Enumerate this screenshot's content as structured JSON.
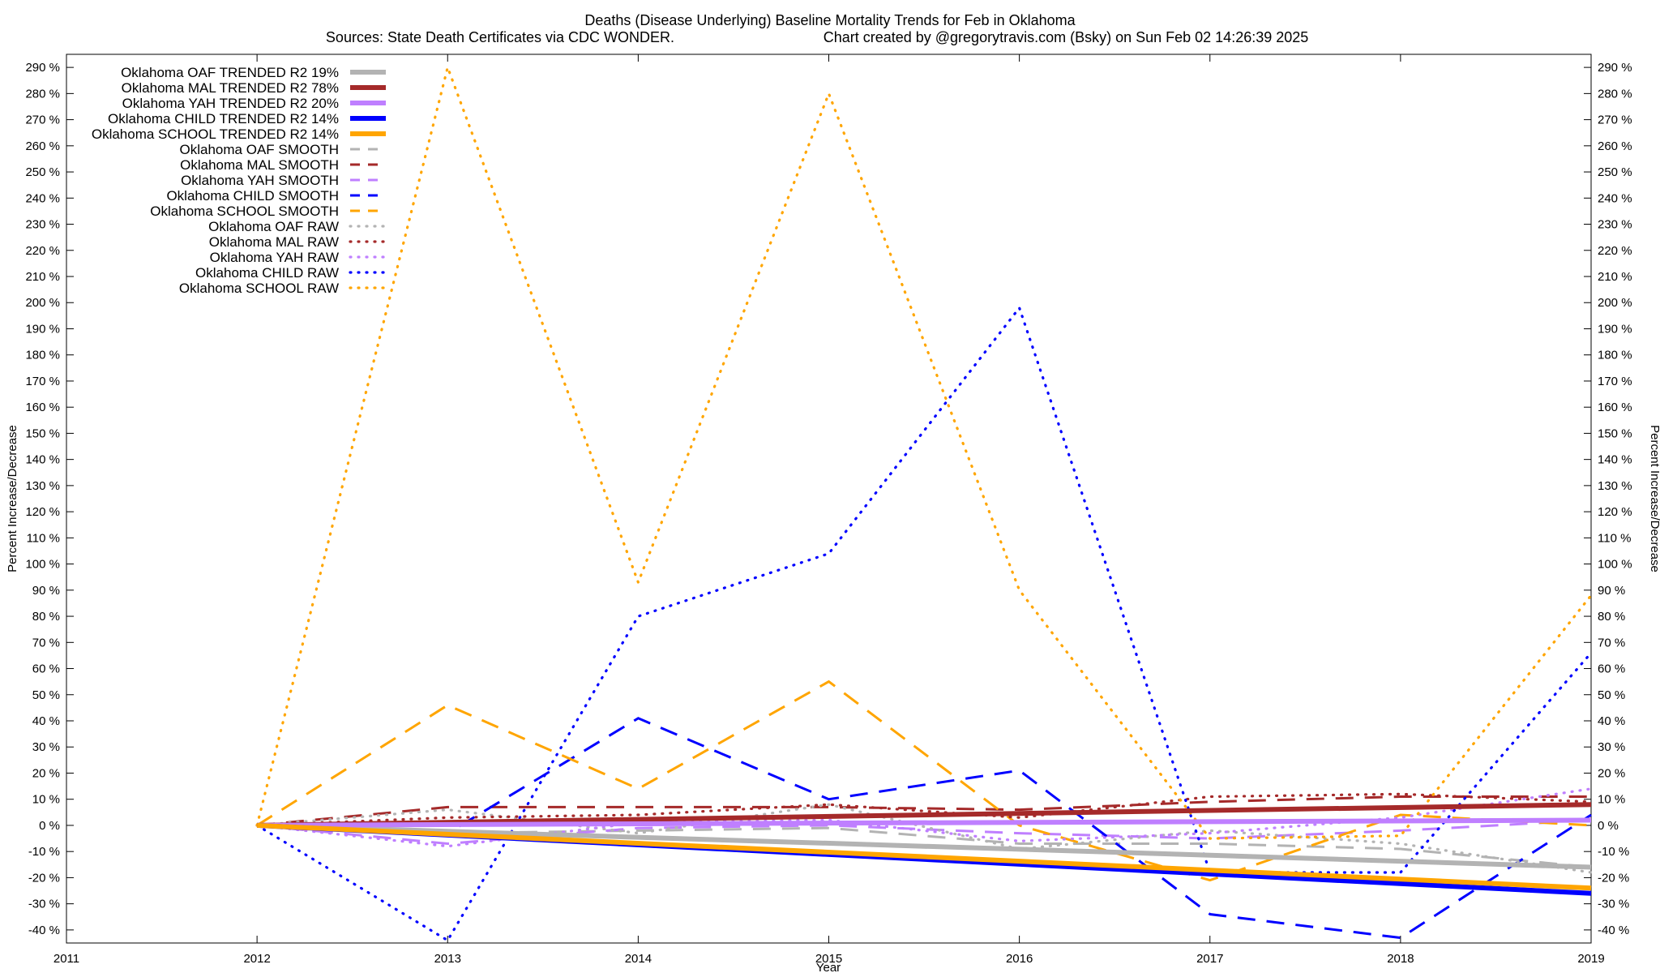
{
  "chart_data": {
    "type": "line",
    "title": "Deaths (Disease Underlying)  Baseline Mortality Trends for Feb in Oklahoma",
    "subtitle_left": "Sources: State Death Certificates via CDC WONDER.",
    "subtitle_right": "Chart created by @gregorytravis.com (Bsky) on Sun Feb 02 14:26:39 2025",
    "xlabel": "Year",
    "ylabel_left": "Percent Increase/Decrease",
    "ylabel_right": "Percent Increase/Decrease",
    "xlim": [
      2011,
      2019
    ],
    "ylim": [
      -45,
      295
    ],
    "x_ticks": [
      "2011",
      "2012",
      "2013",
      "2014",
      "2015",
      "2016",
      "2017",
      "2018",
      "2019"
    ],
    "y_ticks": [
      "290 %",
      "280 %",
      "270 %",
      "260 %",
      "250 %",
      "240 %",
      "230 %",
      "220 %",
      "210 %",
      "200 %",
      "190 %",
      "180 %",
      "170 %",
      "160 %",
      "150 %",
      "140 %",
      "130 %",
      "120 %",
      "110 %",
      "100 %",
      "90 %",
      "80 %",
      "70 %",
      "60 %",
      "50 %",
      "40 %",
      "30 %",
      "20 %",
      "10 %",
      "0 %",
      "-10 %",
      "-20 %",
      "-30 %",
      "-40 %"
    ],
    "grid": false,
    "legend_position": "top-left",
    "series": [
      {
        "name": "Oklahoma OAF TRENDED R2  19%",
        "style": "solid",
        "color": "#b3b3b3",
        "x": [
          2012,
          2019
        ],
        "values": [
          0,
          -16
        ]
      },
      {
        "name": "Oklahoma MAL TRENDED R2  78%",
        "style": "solid",
        "color": "#a52a2a",
        "x": [
          2012,
          2019
        ],
        "values": [
          0,
          8
        ]
      },
      {
        "name": "Oklahoma YAH TRENDED R2  20%",
        "style": "solid",
        "color": "#bf7fff",
        "x": [
          2012,
          2019
        ],
        "values": [
          0,
          2
        ]
      },
      {
        "name": "Oklahoma CHILD TRENDED R2  14%",
        "style": "solid",
        "color": "#0000ff",
        "x": [
          2012,
          2019
        ],
        "values": [
          0,
          -26
        ]
      },
      {
        "name": "Oklahoma SCHOOL TRENDED R2  14%",
        "style": "solid",
        "color": "#ffa500",
        "x": [
          2012,
          2019
        ],
        "values": [
          0,
          -24
        ]
      },
      {
        "name": "Oklahoma OAF SMOOTH",
        "style": "dashed",
        "color": "#b3b3b3",
        "x": [
          2012,
          2013,
          2014,
          2015,
          2016,
          2017,
          2018,
          2019
        ],
        "values": [
          0,
          -3,
          -2,
          -1,
          -7,
          -7,
          -9,
          -16
        ]
      },
      {
        "name": "Oklahoma MAL SMOOTH",
        "style": "dashed",
        "color": "#a52a2a",
        "x": [
          2012,
          2013,
          2014,
          2015,
          2016,
          2017,
          2018,
          2019
        ],
        "values": [
          0,
          7,
          7,
          7,
          6,
          9,
          11,
          11
        ]
      },
      {
        "name": "Oklahoma YAH SMOOTH",
        "style": "dashed",
        "color": "#bf7fff",
        "x": [
          2012,
          2013,
          2014,
          2015,
          2016,
          2017,
          2018,
          2019
        ],
        "values": [
          0,
          -7,
          -1,
          0,
          -3,
          -5,
          -2,
          2
        ]
      },
      {
        "name": "Oklahoma CHILD SMOOTH",
        "style": "dashed",
        "color": "#0000ff",
        "x": [
          2012,
          2013,
          2014,
          2015,
          2016,
          2017,
          2018,
          2019
        ],
        "values": [
          0,
          -3,
          41,
          10,
          21,
          -34,
          -43,
          4
        ]
      },
      {
        "name": "Oklahoma SCHOOL SMOOTH",
        "style": "dashed",
        "color": "#ffa500",
        "x": [
          2012,
          2013,
          2014,
          2015,
          2016,
          2017,
          2018,
          2019
        ],
        "values": [
          0,
          46,
          14,
          55,
          0,
          -21,
          4,
          0
        ]
      },
      {
        "name": "Oklahoma OAF RAW",
        "style": "dotted",
        "color": "#b3b3b3",
        "x": [
          2012,
          2013,
          2014,
          2015,
          2016,
          2017,
          2018,
          2019
        ],
        "values": [
          0,
          6,
          -3,
          8,
          -9,
          -2,
          -7,
          -18
        ]
      },
      {
        "name": "Oklahoma MAL RAW",
        "style": "dotted",
        "color": "#a52a2a",
        "x": [
          2012,
          2013,
          2014,
          2015,
          2016,
          2017,
          2018,
          2019
        ],
        "values": [
          0,
          3,
          4,
          8,
          3,
          11,
          12,
          9
        ]
      },
      {
        "name": "Oklahoma YAH RAW",
        "style": "dotted",
        "color": "#bf7fff",
        "x": [
          2012,
          2013,
          2014,
          2015,
          2016,
          2017,
          2018,
          2019
        ],
        "values": [
          0,
          -8,
          1,
          2,
          -6,
          -3,
          3,
          14
        ]
      },
      {
        "name": "Oklahoma CHILD RAW",
        "style": "dotted",
        "color": "#0000ff",
        "x": [
          2012,
          2013,
          2014,
          2015,
          2016,
          2017,
          2018,
          2019
        ],
        "values": [
          0,
          -44,
          80,
          104,
          198,
          -18,
          -18,
          66
        ]
      },
      {
        "name": "Oklahoma SCHOOL RAW",
        "style": "dotted",
        "color": "#ffa500",
        "x": [
          2012,
          2013,
          2014,
          2015,
          2016,
          2017,
          2018,
          2019
        ],
        "values": [
          0,
          290,
          93,
          280,
          90,
          -5,
          -4,
          88
        ]
      }
    ]
  }
}
